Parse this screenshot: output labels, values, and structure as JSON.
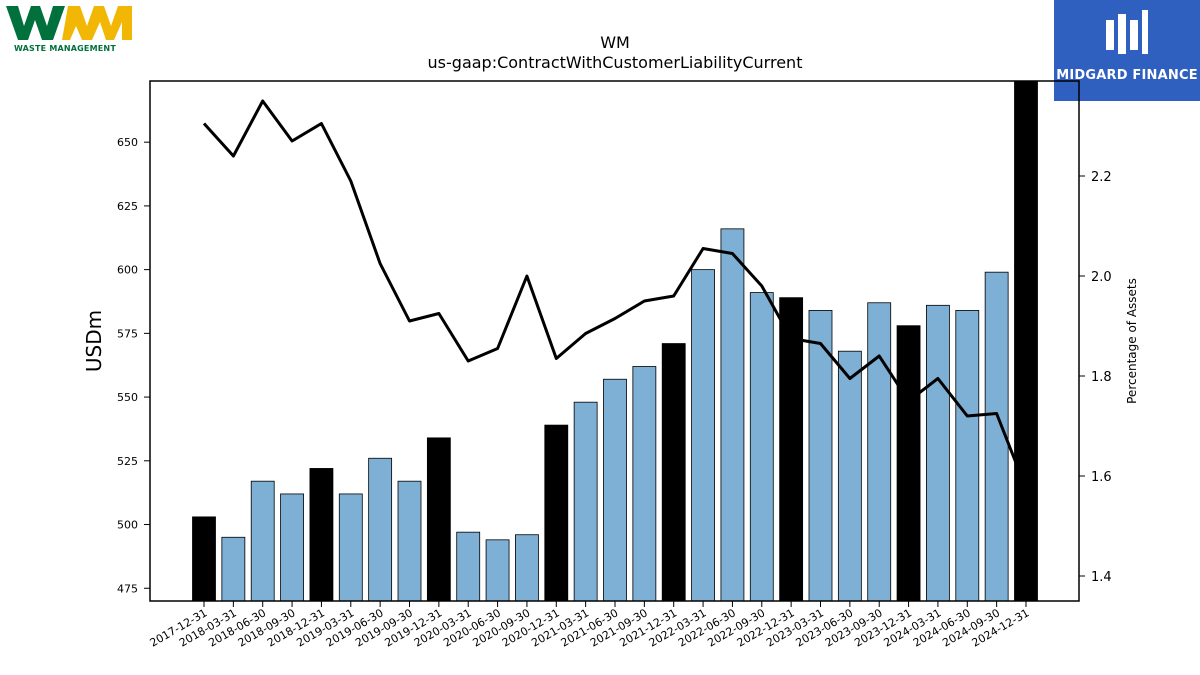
{
  "logos": {
    "left_text": "WASTE MANAGEMENT",
    "right_text": "MIDGARD FINANCE",
    "wm_green": "#00703c",
    "wm_yellow": "#f2b705",
    "midgard_blue": "#2f5fbf"
  },
  "chart_data": {
    "type": "bar",
    "title": "WM",
    "subtitle": "us-gaap:ContractWithCustomerLiabilityCurrent",
    "ylabel": "USDm",
    "y2label": "Percentage of Assets",
    "ylim": [
      470,
      674
    ],
    "y2lim": [
      1.35,
      2.39
    ],
    "yticks": [
      475,
      500,
      525,
      550,
      575,
      600,
      625,
      650
    ],
    "y2ticks": [
      1.4,
      1.6,
      1.8,
      2.0,
      2.2
    ],
    "y2tick_labels": [
      "1.4",
      "1.6",
      "1.8",
      "2.0",
      "2.2"
    ],
    "categories": [
      "2017-12-31",
      "2018-03-31",
      "2018-06-30",
      "2018-09-30",
      "2018-12-31",
      "2019-03-31",
      "2019-06-30",
      "2019-09-30",
      "2019-12-31",
      "2020-03-31",
      "2020-06-30",
      "2020-09-30",
      "2020-12-31",
      "2021-03-31",
      "2021-06-30",
      "2021-09-30",
      "2021-12-31",
      "2022-03-31",
      "2022-06-30",
      "2022-09-30",
      "2022-12-31",
      "2023-03-31",
      "2023-06-30",
      "2023-09-30",
      "2023-12-31",
      "2024-03-31",
      "2024-06-30",
      "2024-09-30",
      "2024-12-31"
    ],
    "values": [
      503,
      495,
      517,
      512,
      522,
      512,
      526,
      517,
      534,
      497,
      494,
      496,
      539,
      548,
      557,
      562,
      571,
      600,
      616,
      591,
      589,
      584,
      568,
      587,
      578,
      586,
      584,
      599,
      674
    ],
    "bar_colors": [
      "#000000",
      "#7eb0d5",
      "#7eb0d5",
      "#7eb0d5",
      "#000000",
      "#7eb0d5",
      "#7eb0d5",
      "#7eb0d5",
      "#000000",
      "#7eb0d5",
      "#7eb0d5",
      "#7eb0d5",
      "#000000",
      "#7eb0d5",
      "#7eb0d5",
      "#7eb0d5",
      "#000000",
      "#7eb0d5",
      "#7eb0d5",
      "#7eb0d5",
      "#000000",
      "#7eb0d5",
      "#7eb0d5",
      "#7eb0d5",
      "#000000",
      "#7eb0d5",
      "#7eb0d5",
      "#7eb0d5",
      "#000000"
    ],
    "line_values": [
      2.305,
      2.24,
      2.35,
      2.27,
      2.305,
      2.19,
      2.025,
      1.91,
      1.925,
      1.83,
      1.855,
      2.0,
      1.835,
      1.885,
      1.915,
      1.95,
      1.96,
      2.055,
      2.045,
      1.98,
      1.875,
      1.865,
      1.795,
      1.84,
      1.75,
      1.795,
      1.72,
      1.725,
      1.575
    ],
    "line_color": "#000000",
    "grid": false,
    "legend": "none"
  }
}
